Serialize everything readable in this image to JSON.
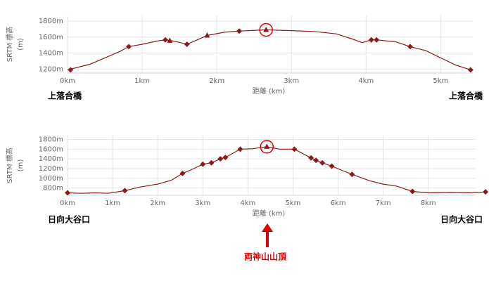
{
  "chart_data": [
    {
      "type": "line",
      "ylabel": "SRTM 標高",
      "ylabel_unit": "(m)",
      "xlabel": "距離 (km)",
      "color": "#8b1a1a",
      "grid": true,
      "x": [
        0,
        0.3,
        0.5,
        0.7,
        0.82,
        1.0,
        1.2,
        1.31,
        1.45,
        1.6,
        1.75,
        1.87,
        2.1,
        2.3,
        2.66,
        3.0,
        3.3,
        3.6,
        3.8,
        3.95,
        4.07,
        4.14,
        4.4,
        4.59,
        4.8,
        5.0,
        5.2,
        5.4
      ],
      "values": [
        1190,
        1260,
        1340,
        1420,
        1480,
        1510,
        1550,
        1565,
        1545,
        1510,
        1570,
        1620,
        1660,
        1675,
        1690,
        1680,
        1670,
        1640,
        1580,
        1530,
        1565,
        1565,
        1540,
        1480,
        1430,
        1340,
        1250,
        1190
      ],
      "markers": {
        "x": [
          0.04,
          0.82,
          1.31,
          1.37,
          1.6,
          1.87,
          2.3,
          2.66,
          4.07,
          4.14,
          4.59,
          5.4
        ],
        "values": [
          1190,
          1480,
          1565,
          1555,
          1510,
          1620,
          1675,
          1690,
          1565,
          1565,
          1480,
          1190
        ],
        "shapes": [
          "diamond",
          "diamond",
          "diamond",
          "triangle",
          "diamond",
          "triangle",
          "diamond",
          "triangle",
          "diamond",
          "diamond",
          "diamond",
          "diamond"
        ],
        "circled": 7
      },
      "xlim": [
        0,
        5.43
      ],
      "ylim": [
        1150,
        1870
      ],
      "xticks": [
        {
          "value": 0,
          "label": "0km"
        },
        {
          "value": 1,
          "label": "1km"
        },
        {
          "value": 2,
          "label": "2km"
        },
        {
          "value": 3,
          "label": "3km"
        },
        {
          "value": 4,
          "label": "4km"
        },
        {
          "value": 5,
          "label": "5km"
        }
      ],
      "yticks": [
        {
          "value": 1200,
          "label": "1200m"
        },
        {
          "value": 1400,
          "label": "1400m"
        },
        {
          "value": 1600,
          "label": "1600m"
        },
        {
          "value": 1800,
          "label": "1800m"
        }
      ],
      "annotations": [
        "上落合橋",
        "上落合橋"
      ]
    },
    {
      "type": "line",
      "ylabel": "SRTM 標高",
      "ylabel_unit": "(m)",
      "xlabel": "距離 (km)",
      "color": "#8b1a1a",
      "grid": true,
      "x": [
        0,
        0.3,
        0.6,
        0.9,
        1.27,
        1.6,
        2.0,
        2.3,
        2.55,
        2.8,
        3.0,
        3.19,
        3.39,
        3.5,
        3.83,
        4.1,
        4.42,
        4.7,
        5.03,
        5.4,
        5.51,
        5.65,
        5.86,
        6.31,
        6.7,
        7.0,
        7.3,
        7.65,
        8.0,
        8.5,
        9.0,
        9.27
      ],
      "values": [
        700,
        690,
        700,
        690,
        745,
        820,
        880,
        960,
        1100,
        1200,
        1290,
        1320,
        1400,
        1430,
        1600,
        1610,
        1650,
        1600,
        1600,
        1420,
        1370,
        1320,
        1250,
        1080,
        950,
        880,
        840,
        730,
        700,
        710,
        700,
        720
      ],
      "markers": {
        "x": [
          0,
          1.27,
          2.55,
          3.0,
          3.19,
          3.39,
          3.5,
          3.83,
          4.42,
          5.03,
          5.4,
          5.51,
          5.65,
          5.86,
          6.31,
          7.65,
          9.27
        ],
        "values": [
          700,
          745,
          1100,
          1290,
          1320,
          1400,
          1430,
          1600,
          1650,
          1600,
          1420,
          1370,
          1320,
          1250,
          1080,
          730,
          720
        ],
        "shapes": [
          "diamond",
          "diamond",
          "diamond",
          "diamond",
          "diamond",
          "diamond",
          "diamond",
          "diamond",
          "triangle",
          "diamond",
          "diamond",
          "diamond",
          "diamond",
          "diamond",
          "diamond",
          "diamond",
          "diamond"
        ],
        "circled": 8
      },
      "xlim": [
        0,
        9.3
      ],
      "ylim": [
        650,
        1880
      ],
      "xticks": [
        {
          "value": 0,
          "label": "0km"
        },
        {
          "value": 1,
          "label": "1km"
        },
        {
          "value": 2,
          "label": "2km"
        },
        {
          "value": 3,
          "label": "3km"
        },
        {
          "value": 4,
          "label": "4km"
        },
        {
          "value": 5,
          "label": "5km"
        },
        {
          "value": 6,
          "label": "6km"
        },
        {
          "value": 7,
          "label": "7km"
        },
        {
          "value": 8,
          "label": "8km"
        }
      ],
      "yticks": [
        {
          "value": 800,
          "label": "800m"
        },
        {
          "value": 1000,
          "label": "1000m"
        },
        {
          "value": 1200,
          "label": "1200m"
        },
        {
          "value": 1400,
          "label": "1400m"
        },
        {
          "value": 1600,
          "label": "1600m"
        },
        {
          "value": 1800,
          "label": "1800m"
        }
      ],
      "annotations": [
        "日向大谷口",
        "日向大谷口",
        "両神山山頂"
      ]
    }
  ]
}
